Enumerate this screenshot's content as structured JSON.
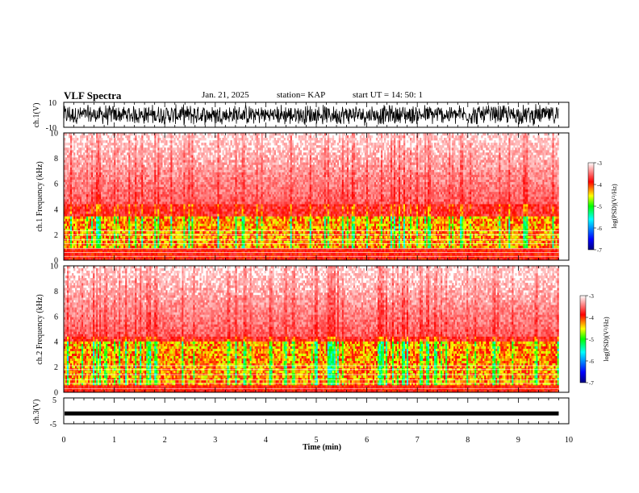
{
  "header": {
    "title": "VLF Spectra",
    "date": "Jan. 21, 2025",
    "station": "station= KAP",
    "start": "start  UT  =   14: 50: 1"
  },
  "chart_data": [
    {
      "type": "line",
      "panel": "ch1-waveform",
      "ylabel": "ch.1(V)",
      "ylim": [
        -10,
        10
      ],
      "yticks": [
        "10",
        "-10"
      ],
      "xlim": [
        0,
        10
      ],
      "series": [
        {
          "values_summary": "dense noisy waveform, amplitude roughly -8 to 8 V, spanning 0 to 9.8 min"
        }
      ],
      "data_end_min": 9.8
    },
    {
      "type": "heatmap",
      "panel": "ch1-spectrogram",
      "ylabel": "ch.1 Frequency  (kHz)",
      "ylim": [
        0,
        10
      ],
      "yticks": [
        "0",
        "2",
        "4",
        "6",
        "8",
        "10"
      ],
      "xlim": [
        0,
        10
      ],
      "data_end_min": 9.8,
      "colorbar": {
        "label": "log(PSD)(V²/Hz)",
        "range": [
          -7,
          -3
        ],
        "ticks": [
          "-3",
          "-4",
          "-5",
          "-6",
          "-7"
        ],
        "colormap": [
          "#00007f",
          "#0000ff",
          "#00ffff",
          "#00ff00",
          "#ffff00",
          "#ff0000",
          "#ffffff"
        ]
      },
      "features": {
        "band_kHz": [
          1.0,
          3.5
        ],
        "low_level_kHz": [
          4,
          10
        ],
        "persistent_lines_kHz": [
          0.3,
          0.6,
          0.9,
          1.3,
          1.6,
          2.0,
          2.3
        ]
      }
    },
    {
      "type": "heatmap",
      "panel": "ch2-spectrogram",
      "ylabel": "ch.2 Frequency  (kHz)",
      "ylim": [
        0,
        10
      ],
      "yticks": [
        "0",
        "2",
        "4",
        "6",
        "8",
        "10"
      ],
      "xlim": [
        0,
        10
      ],
      "data_end_min": 9.8,
      "colorbar": {
        "label": "log(PSD)(V²/Hz)",
        "range": [
          -7,
          -3
        ],
        "ticks": [
          "-3",
          "-4",
          "-5",
          "-6",
          "-7"
        ],
        "colormap": [
          "#00007f",
          "#0000ff",
          "#00ffff",
          "#00ff00",
          "#ffff00",
          "#ff0000",
          "#ffffff"
        ]
      },
      "features": {
        "band_kHz": [
          0.5,
          4.0
        ],
        "low_level_kHz": [
          4,
          10
        ],
        "persistent_lines_kHz": [
          0.3,
          0.7,
          1.0,
          1.4,
          1.8,
          2.1
        ]
      }
    },
    {
      "type": "line",
      "panel": "ch3-waveform",
      "ylabel": "ch.3(V)",
      "ylim": [
        -5,
        5
      ],
      "yticks": [
        "5",
        "-5"
      ],
      "xlim": [
        0,
        10
      ],
      "data_end_min": 9.8,
      "series": [
        {
          "values_summary": "thick nearly constant trace near -1 V"
        }
      ],
      "level_V": -1
    }
  ],
  "xaxis": {
    "label": "Time  (min)",
    "ticks": [
      "0",
      "1",
      "2",
      "3",
      "4",
      "5",
      "6",
      "7",
      "8",
      "9",
      "10"
    ]
  }
}
